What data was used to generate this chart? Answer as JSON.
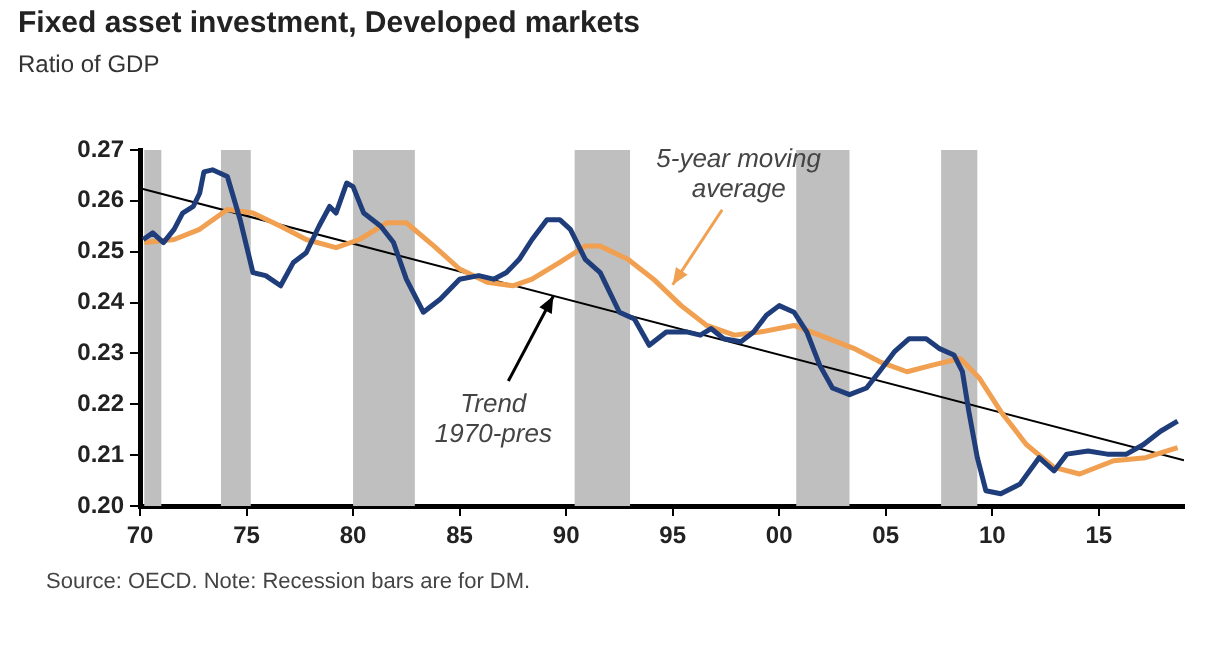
{
  "chart_data": {
    "type": "line",
    "title": "Fixed asset investment, Developed markets",
    "subtitle": "Ratio of GDP",
    "xlim": [
      1970,
      2019
    ],
    "xticks": [
      {
        "value": 1970,
        "label": "70"
      },
      {
        "value": 1975,
        "label": "75"
      },
      {
        "value": 1980,
        "label": "80"
      },
      {
        "value": 1985,
        "label": "85"
      },
      {
        "value": 1990,
        "label": "90"
      },
      {
        "value": 1995,
        "label": "95"
      },
      {
        "value": 2000,
        "label": "00"
      },
      {
        "value": 2005,
        "label": "05"
      },
      {
        "value": 2010,
        "label": "10"
      },
      {
        "value": 2015,
        "label": "15"
      }
    ],
    "ylim": [
      0.2,
      0.27
    ],
    "yticks": [
      {
        "value": 0.2,
        "label": "0.20"
      },
      0.21,
      0.22,
      0.23,
      0.24,
      0.25,
      0.26,
      0.27
    ],
    "bands": [
      {
        "axis": "x",
        "from": 1970.2,
        "to": 1971.0,
        "color": "#bfbfbf"
      },
      {
        "axis": "x",
        "from": 1973.8,
        "to": 1975.2,
        "color": "#bfbfbf"
      },
      {
        "axis": "x",
        "from": 1980.0,
        "to": 1982.9,
        "color": "#bfbfbf"
      },
      {
        "axis": "x",
        "from": 1990.4,
        "to": 1993.0,
        "color": "#bfbfbf"
      },
      {
        "axis": "x",
        "from": 2000.8,
        "to": 2003.3,
        "color": "#bfbfbf"
      },
      {
        "axis": "x",
        "from": 2007.6,
        "to": 2009.3,
        "color": "#bfbfbf"
      }
    ],
    "series": [
      {
        "color": "#1f3d7a",
        "x": [
          1970.15,
          1970.6,
          1971.1,
          1971.6,
          1972.0,
          1972.5,
          1972.8,
          1973.0,
          1973.4,
          1974.1,
          1974.7,
          1975.3,
          1975.9,
          1976.6,
          1977.2,
          1977.8,
          1978.4,
          1978.9,
          1979.2,
          1979.7,
          1980.0,
          1980.5,
          1981.3,
          1981.9,
          1982.5,
          1983.3,
          1984.1,
          1985.0,
          1985.9,
          1986.6,
          1987.2,
          1987.8,
          1988.4,
          1989.1,
          1989.7,
          1990.2,
          1990.9,
          1991.6,
          1992.5,
          1993.2,
          1993.9,
          1994.7,
          1995.7,
          1996.3,
          1996.8,
          1997.4,
          1998.2,
          1998.8,
          1999.4,
          2000.0,
          2000.7,
          2001.3,
          2001.9,
          2002.5,
          2003.3,
          2004.1,
          2004.7,
          2005.4,
          2006.1,
          2006.9,
          2007.5,
          2008.2,
          2008.6,
          2008.9,
          2009.3,
          2009.7,
          2010.4,
          2011.3,
          2012.2,
          2012.9,
          2013.5,
          2014.5,
          2015.4,
          2016.3,
          2017.1,
          2017.9,
          2018.7
        ],
        "values": [
          0.2524,
          0.2537,
          0.2518,
          0.2544,
          0.2576,
          0.2589,
          0.2615,
          0.2657,
          0.2661,
          0.2648,
          0.2563,
          0.2459,
          0.2453,
          0.2433,
          0.2479,
          0.2498,
          0.255,
          0.2589,
          0.2576,
          0.2635,
          0.2628,
          0.2576,
          0.255,
          0.2518,
          0.2446,
          0.2381,
          0.2407,
          0.2446,
          0.2453,
          0.2446,
          0.2459,
          0.2485,
          0.2524,
          0.2563,
          0.2563,
          0.2544,
          0.2485,
          0.2459,
          0.2381,
          0.2368,
          0.2316,
          0.2342,
          0.2342,
          0.2336,
          0.2349,
          0.2329,
          0.2323,
          0.2342,
          0.2375,
          0.2394,
          0.2381,
          0.2342,
          0.2277,
          0.2232,
          0.2219,
          0.2232,
          0.2264,
          0.2303,
          0.2329,
          0.2329,
          0.231,
          0.2297,
          0.2264,
          0.2186,
          0.2095,
          0.203,
          0.2024,
          0.2043,
          0.2095,
          0.2069,
          0.2102,
          0.2108,
          0.2102,
          0.2102,
          0.2121,
          0.2147,
          0.2167
        ]
      },
      {
        "color": "#f0a050",
        "x": [
          1970.2,
          1971.6,
          1972.8,
          1974.1,
          1975.3,
          1976.6,
          1977.8,
          1979.2,
          1980.3,
          1981.6,
          1982.5,
          1983.8,
          1985.0,
          1986.3,
          1987.5,
          1988.4,
          1989.7,
          1990.9,
          1991.6,
          1992.9,
          1994.1,
          1995.4,
          1996.6,
          1997.9,
          1999.1,
          2000.7,
          2001.9,
          2003.5,
          2004.7,
          2006.0,
          2007.2,
          2008.5,
          2009.4,
          2010.4,
          2011.6,
          2012.9,
          2014.1,
          2015.7,
          2017.2,
          2018.7
        ],
        "values": [
          0.2518,
          0.2524,
          0.2544,
          0.2583,
          0.2576,
          0.255,
          0.2524,
          0.2508,
          0.2524,
          0.2557,
          0.2557,
          0.2511,
          0.2466,
          0.244,
          0.2433,
          0.2446,
          0.2479,
          0.2511,
          0.2511,
          0.2485,
          0.2446,
          0.2394,
          0.2355,
          0.2336,
          0.2342,
          0.2355,
          0.2336,
          0.231,
          0.2284,
          0.2264,
          0.2277,
          0.229,
          0.2251,
          0.2186,
          0.2121,
          0.2076,
          0.2063,
          0.2089,
          0.2095,
          0.2115
        ]
      },
      {
        "color": "#000000",
        "x": [
          1970,
          2019
        ],
        "values": [
          0.2625,
          0.209
        ]
      }
    ],
    "annotations": [
      {
        "text": "Trend 1970-pres",
        "x": 1989.4,
        "y": 0.2413
      },
      {
        "text": "5-year moving average",
        "x": 1995.0,
        "y": 0.2435
      },
      "Source: OECD. Note: Recession bars are for DM."
    ]
  }
}
